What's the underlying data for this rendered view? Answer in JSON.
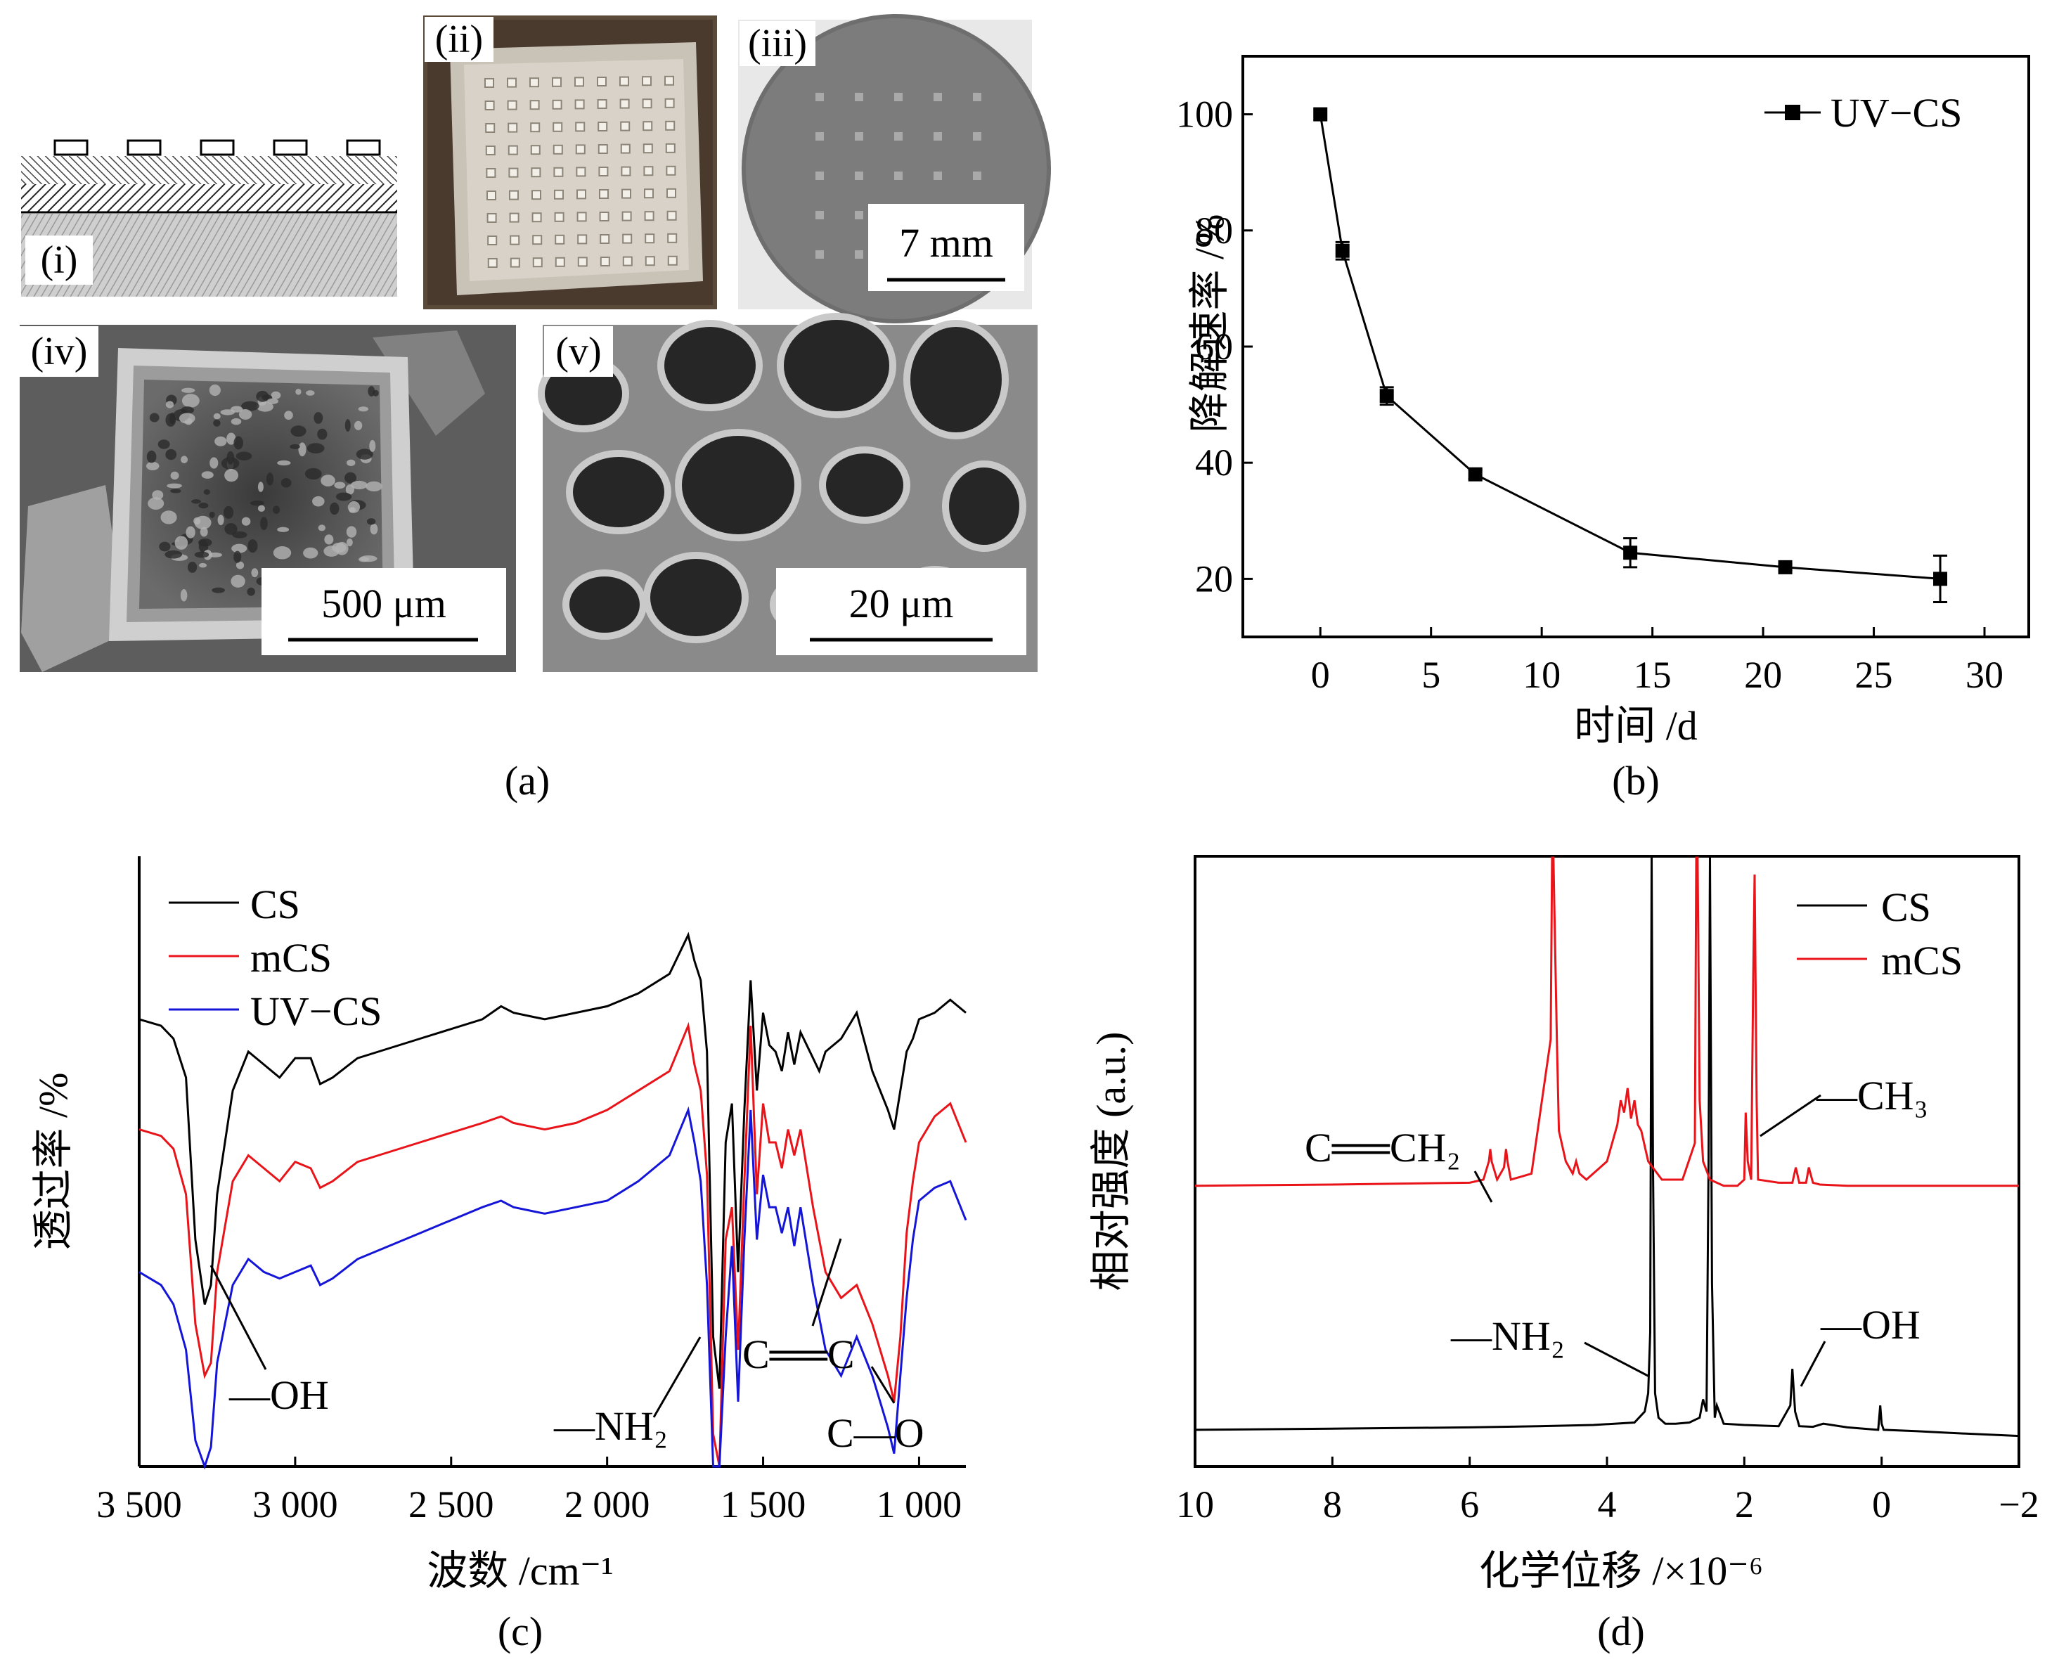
{
  "panel_a": {
    "caption": "(a)",
    "labels": [
      "(i)",
      "(ii)",
      "(iii)",
      "(iv)",
      "(v)"
    ],
    "scalebars": [
      "7 mm",
      "500 μm",
      "20 μm"
    ]
  },
  "panel_b": {
    "caption": "(b)"
  },
  "panel_c": {
    "caption": "(c)"
  },
  "panel_d": {
    "caption": "(d)"
  },
  "colors": {
    "CS": "#000000",
    "mCS": "#e8141a",
    "UV-CS": "#1515d8"
  },
  "chart_data": [
    {
      "id": "b",
      "type": "line",
      "xlabel": "时间 /d",
      "ylabel": "降解速率 /%",
      "xlim": [
        -3.5,
        32
      ],
      "ylim": [
        10,
        110
      ],
      "xticks": [
        0,
        5,
        10,
        15,
        20,
        25,
        30
      ],
      "yticks": [
        20,
        40,
        60,
        80,
        100
      ],
      "legend": "top-right",
      "series": [
        {
          "name": "UV−CS",
          "x": [
            0,
            1,
            3,
            7,
            14,
            21,
            28
          ],
          "y": [
            100,
            76.5,
            51.5,
            38,
            24.5,
            22,
            20
          ],
          "err": [
            0,
            1.5,
            1.5,
            0.8,
            2.5,
            0.5,
            4
          ]
        }
      ]
    },
    {
      "id": "c",
      "type": "line",
      "xlabel": "波数 /cm⁻¹",
      "ylabel": "透过率 /%",
      "xlim": [
        3500,
        850
      ],
      "xticks": [
        3500,
        3000,
        2500,
        2000,
        1500,
        1000
      ],
      "xticklabels": [
        "3 500",
        "3 000",
        "2 500",
        "2 000",
        "1 500",
        "1 000"
      ],
      "legend": "top-left",
      "annotations": [
        "—OH",
        "—NH₂",
        "C══C",
        "C—O"
      ],
      "series": [
        {
          "name": "CS",
          "x": [
            3500,
            3430,
            3390,
            3350,
            3320,
            3290,
            3270,
            3250,
            3200,
            3150,
            3100,
            3050,
            3000,
            2950,
            2920,
            2880,
            2800,
            2600,
            2400,
            2340,
            2300,
            2200,
            2100,
            2000,
            1900,
            1800,
            1740,
            1720,
            1700,
            1680,
            1660,
            1640,
            1620,
            1600,
            1580,
            1560,
            1540,
            1520,
            1500,
            1480,
            1460,
            1440,
            1420,
            1400,
            1380,
            1340,
            1320,
            1300,
            1250,
            1200,
            1150,
            1100,
            1080,
            1060,
            1040,
            1020,
            1000,
            950,
            900,
            850
          ],
          "y": [
            69,
            68,
            66,
            60,
            35,
            25,
            28,
            42,
            58,
            64,
            62,
            60,
            63,
            63,
            59,
            60,
            63,
            66,
            69,
            71,
            70,
            69,
            70,
            71,
            73,
            76,
            82,
            78,
            75,
            64,
            20,
            12,
            50,
            56,
            30,
            55,
            75,
            58,
            70,
            65,
            64,
            61,
            67,
            62,
            67,
            63,
            61,
            64,
            66,
            70,
            61,
            55,
            52,
            58,
            64,
            66,
            69,
            70,
            72,
            70
          ]
        },
        {
          "name": "mCS",
          "x": [
            3500,
            3430,
            3390,
            3350,
            3320,
            3290,
            3270,
            3250,
            3200,
            3150,
            3100,
            3050,
            3000,
            2950,
            2920,
            2880,
            2800,
            2600,
            2400,
            2340,
            2300,
            2200,
            2100,
            2000,
            1900,
            1800,
            1740,
            1720,
            1700,
            1680,
            1660,
            1640,
            1620,
            1600,
            1580,
            1560,
            1540,
            1520,
            1500,
            1480,
            1460,
            1440,
            1420,
            1400,
            1380,
            1340,
            1320,
            1300,
            1250,
            1200,
            1150,
            1100,
            1080,
            1060,
            1040,
            1020,
            1000,
            950,
            900,
            850
          ],
          "y": [
            52,
            51,
            49,
            42,
            22,
            14,
            16,
            30,
            44,
            48,
            46,
            44,
            47,
            46,
            43,
            44,
            47,
            50,
            53,
            54,
            53,
            52,
            53,
            55,
            58,
            61,
            68,
            62,
            58,
            45,
            5,
            0,
            35,
            40,
            18,
            44,
            68,
            42,
            56,
            50,
            50,
            46,
            52,
            48,
            52,
            40,
            35,
            30,
            26,
            28,
            22,
            14,
            10,
            20,
            36,
            44,
            50,
            54,
            56,
            50
          ]
        },
        {
          "name": "UV−CS",
          "x": [
            3500,
            3430,
            3390,
            3350,
            3320,
            3290,
            3270,
            3250,
            3200,
            3150,
            3100,
            3050,
            3000,
            2950,
            2920,
            2880,
            2800,
            2600,
            2400,
            2340,
            2300,
            2200,
            2100,
            2000,
            1900,
            1800,
            1740,
            1720,
            1700,
            1680,
            1660,
            1640,
            1620,
            1600,
            1580,
            1560,
            1540,
            1520,
            1500,
            1480,
            1460,
            1440,
            1420,
            1400,
            1380,
            1340,
            1320,
            1300,
            1250,
            1200,
            1150,
            1100,
            1080,
            1060,
            1040,
            1020,
            1000,
            950,
            900,
            850
          ],
          "y": [
            30,
            28,
            25,
            18,
            4,
            0,
            3,
            16,
            28,
            32,
            30,
            29,
            30,
            31,
            28,
            29,
            32,
            36,
            40,
            41,
            40,
            39,
            40,
            41,
            44,
            48,
            55,
            50,
            44,
            28,
            0,
            0,
            20,
            34,
            10,
            35,
            55,
            35,
            45,
            40,
            40,
            36,
            40,
            34,
            40,
            28,
            23,
            18,
            14,
            20,
            14,
            6,
            2,
            14,
            26,
            35,
            41,
            43,
            44,
            38
          ]
        }
      ]
    },
    {
      "id": "d",
      "type": "line",
      "xlabel": "化学位移 /×10⁻⁶",
      "ylabel": "相对强度 (a.u.)",
      "xlim": [
        10,
        -2
      ],
      "xticks": [
        10,
        8,
        6,
        4,
        2,
        0,
        -2
      ],
      "xticklabels": [
        "10",
        "8",
        "6",
        "4",
        "2",
        "0",
        "−2"
      ],
      "legend": "top-right",
      "annotations": [
        "C══CH₂",
        "—CH₃",
        "—NH₂",
        "—OH"
      ],
      "series": [
        {
          "name": "CS",
          "x": [
            10,
            8,
            6,
            5,
            4.2,
            3.6,
            3.45,
            3.4,
            3.37,
            3.35,
            3.33,
            3.3,
            3.25,
            3.15,
            3.0,
            2.8,
            2.65,
            2.6,
            2.55,
            2.52,
            2.5,
            2.47,
            2.43,
            2.4,
            2.3,
            2.0,
            1.5,
            1.33,
            1.3,
            1.26,
            1.2,
            1.0,
            0.85,
            0.5,
            0.05,
            0.02,
            0.0,
            -0.03,
            -0.5,
            -1,
            -2
          ],
          "y": [
            0.06,
            0.062,
            0.064,
            0.066,
            0.068,
            0.072,
            0.09,
            0.12,
            0.22,
            1.4,
            0.5,
            0.12,
            0.08,
            0.07,
            0.07,
            0.072,
            0.08,
            0.11,
            0.09,
            0.5,
            1.4,
            0.3,
            0.08,
            0.1,
            0.07,
            0.068,
            0.066,
            0.1,
            0.16,
            0.09,
            0.066,
            0.065,
            0.07,
            0.064,
            0.06,
            0.1,
            0.07,
            0.06,
            0.058,
            0.055,
            0.05
          ]
        },
        {
          "name": "mCS",
          "x": [
            10,
            8,
            6,
            5.8,
            5.72,
            5.7,
            5.68,
            5.6,
            5.5,
            5.47,
            5.45,
            5.4,
            5.1,
            4.82,
            4.8,
            4.78,
            4.73,
            4.7,
            4.6,
            4.5,
            4.45,
            4.4,
            4.3,
            4.0,
            3.85,
            3.8,
            3.75,
            3.7,
            3.65,
            3.6,
            3.55,
            3.5,
            3.4,
            3.2,
            2.9,
            2.72,
            2.7,
            2.68,
            2.65,
            2.6,
            2.5,
            2.3,
            2.1,
            2.0,
            1.98,
            1.95,
            1.9,
            1.87,
            1.85,
            1.82,
            1.8,
            1.5,
            1.3,
            1.25,
            1.2,
            1.1,
            1.06,
            1.0,
            0.9,
            0.5,
            0,
            -1,
            -2
          ],
          "y": [
            0.46,
            0.462,
            0.465,
            0.47,
            0.5,
            0.52,
            0.5,
            0.47,
            0.49,
            0.52,
            0.5,
            0.47,
            0.48,
            0.7,
            1.4,
            1.4,
            0.7,
            0.55,
            0.5,
            0.48,
            0.5,
            0.48,
            0.47,
            0.5,
            0.56,
            0.6,
            0.58,
            0.62,
            0.57,
            0.6,
            0.56,
            0.55,
            0.5,
            0.47,
            0.47,
            0.53,
            1.4,
            1.4,
            0.6,
            0.5,
            0.47,
            0.46,
            0.46,
            0.47,
            0.58,
            0.5,
            0.47,
            0.8,
            0.97,
            0.6,
            0.47,
            0.465,
            0.465,
            0.49,
            0.465,
            0.465,
            0.49,
            0.465,
            0.462,
            0.46,
            0.46,
            0.46,
            0.46
          ]
        }
      ]
    }
  ]
}
